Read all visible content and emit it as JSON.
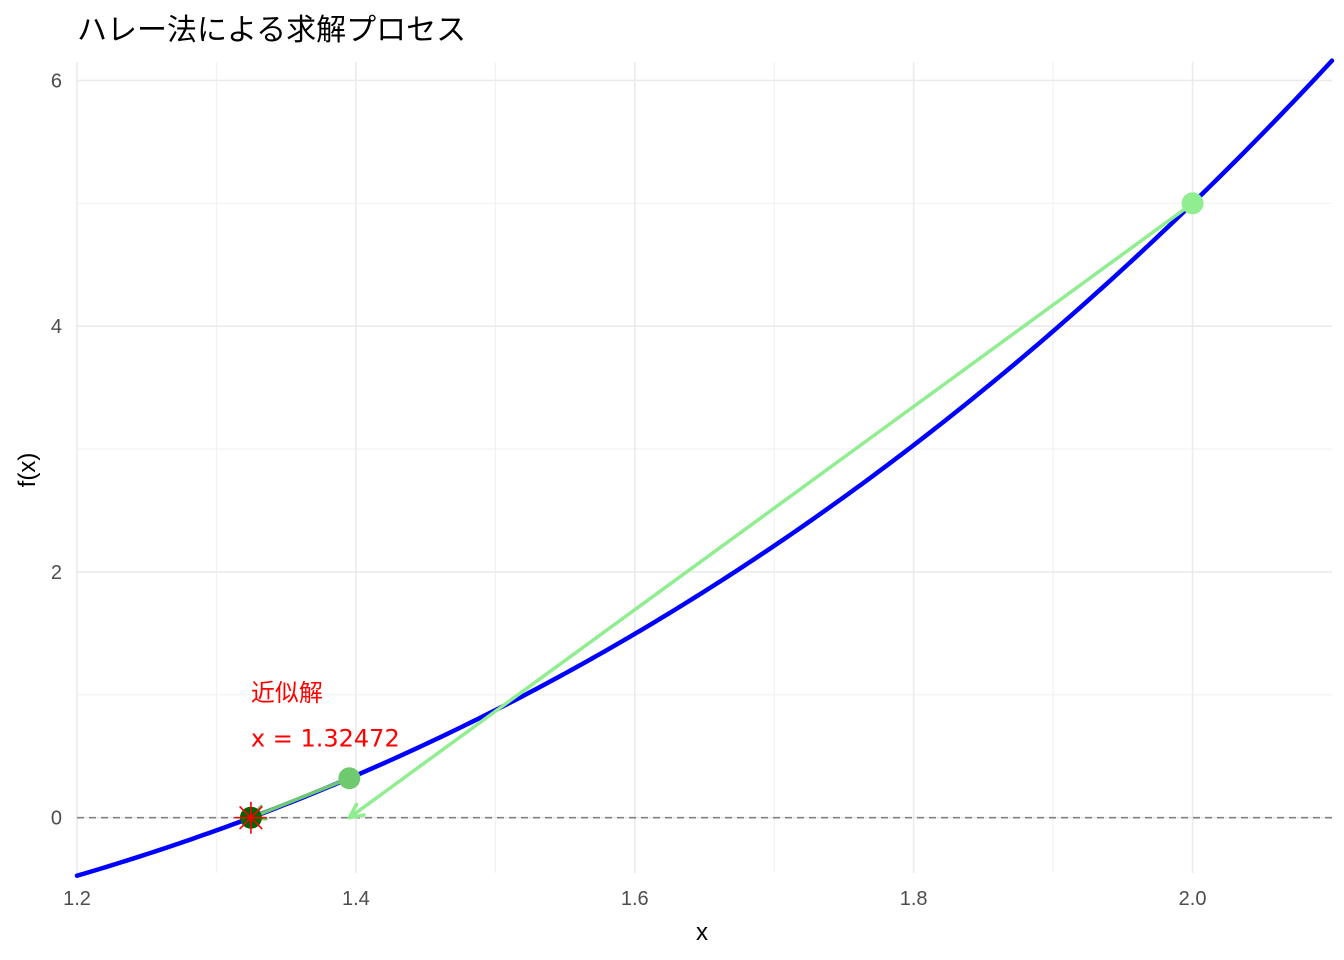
{
  "chart_data": {
    "type": "line",
    "title": "ハレー法による求解プロセス",
    "xlabel": "x",
    "ylabel": "f(x)",
    "xlim": [
      1.2,
      2.1
    ],
    "ylim": [
      -0.45,
      6.15
    ],
    "x_ticks": [
      "1.2",
      "1.4",
      "1.6",
      "1.8",
      "2.0"
    ],
    "x_tick_values": [
      1.2,
      1.4,
      1.6,
      1.8,
      2.0
    ],
    "y_ticks": [
      "0",
      "2",
      "4",
      "6"
    ],
    "y_tick_values": [
      0,
      2,
      4,
      6
    ],
    "grid": true,
    "legend": "none",
    "function": "x^3 - x - 1",
    "curve_color": "#0000ff",
    "zero_line_color": "#808080",
    "iterations": [
      {
        "x": 2.0,
        "y": 5.0,
        "color": "#90ee90"
      },
      {
        "x": 1.3953,
        "y": 0.3212,
        "color": "#6fc96f"
      },
      {
        "x": 1.32472,
        "y": 0.0,
        "color": "#006400"
      }
    ],
    "steps": [
      {
        "from_x": 2.0,
        "from_y": 5.0,
        "to_x": 1.3953,
        "to_y": 0.0,
        "color": "#90ee90"
      },
      {
        "from_x": 1.3953,
        "from_y": 0.3212,
        "to_x": 1.32472,
        "to_y": 0.0,
        "color": "#6fc96f"
      }
    ],
    "solution": {
      "x": 1.32472,
      "y": 0.0,
      "marker_color": "#ff0000"
    },
    "annotation": {
      "line1": "近似解",
      "line2": "x = 1.32472",
      "x": 1.32472,
      "y1": 0.95,
      "y2": 0.58,
      "color": "#ff0000"
    }
  }
}
